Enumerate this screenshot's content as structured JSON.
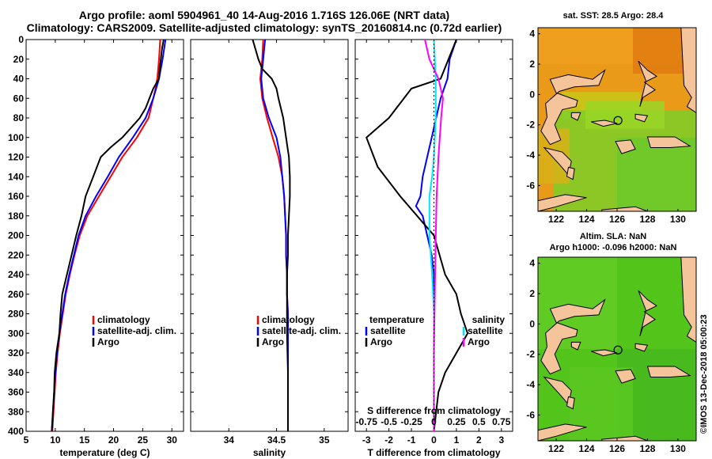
{
  "figure": {
    "title_line1": "Argo profile: aoml 5904961_40 14-Aug-2016 1.716S 126.06E (NRT data)",
    "title_line2": "Climatology: CARS2009. Satellite-adjusted climatology: synTS_20160814.nc (0.72d earlier)",
    "watermark": "©IMOS 13-Dec-2018 05:00:23"
  },
  "colors": {
    "climatology": "#ff0000",
    "satellite": "#0000ff",
    "argo": "#000000",
    "satellite_salinity": "#00e5ff",
    "argo_salinity": "#ff00ff",
    "sst_base": "#e89a18",
    "sla_base": "#52c41a",
    "land": "#f5c49a"
  },
  "chart_data": [
    {
      "id": "temperature",
      "type": "line",
      "xlabel": "temperature (deg C)",
      "ylabel": "",
      "xlim": [
        5,
        32
      ],
      "ylim": [
        400,
        0
      ],
      "xticks": [
        5,
        10,
        15,
        20,
        25,
        30
      ],
      "yticks": [
        0,
        20,
        40,
        60,
        80,
        100,
        120,
        140,
        160,
        180,
        200,
        220,
        240,
        260,
        280,
        300,
        320,
        340,
        360,
        380,
        400
      ],
      "legend_position": "lower-center",
      "series": [
        {
          "name": "climatology",
          "color": "#ff0000",
          "x": [
            28.0,
            27.8,
            27.5,
            27.3,
            27.2,
            26.8,
            26.0,
            24.0,
            21.5,
            19.5,
            17.5,
            15.5,
            14.2,
            13.3,
            12.5,
            11.8,
            11.3,
            10.8,
            10.4,
            10.1,
            9.9,
            9.7,
            9.5
          ],
          "y": [
            0,
            20,
            40,
            45,
            50,
            60,
            80,
            100,
            120,
            140,
            160,
            180,
            200,
            220,
            240,
            260,
            280,
            300,
            320,
            340,
            360,
            380,
            400
          ]
        },
        {
          "name": "satellite-adj. clim.",
          "color": "#0000ff",
          "x": [
            28.9,
            28.4,
            27.8,
            27.3,
            26.8,
            25.5,
            23.3,
            20.9,
            19.0,
            17.0,
            15.2,
            14.0,
            13.2,
            12.4,
            11.7,
            11.2,
            10.7,
            10.3,
            10.0,
            9.8,
            9.6,
            9.4
          ],
          "y": [
            0,
            20,
            40,
            50,
            60,
            80,
            100,
            120,
            140,
            160,
            180,
            200,
            220,
            240,
            260,
            280,
            300,
            320,
            340,
            360,
            380,
            400
          ]
        },
        {
          "name": "Argo",
          "color": "#000000",
          "x": [
            28.6,
            28.3,
            28.1,
            27.9,
            27.8,
            26.8,
            25.5,
            24.5,
            23.0,
            21.5,
            19.5,
            17.8,
            16.5,
            15.2,
            14.5,
            13.6,
            12.8,
            12.0,
            11.2,
            10.9,
            10.7,
            10.2,
            9.9,
            9.8,
            9.6,
            9.5,
            9.4
          ],
          "y": [
            0,
            10,
            20,
            30,
            40,
            50,
            70,
            80,
            90,
            100,
            110,
            120,
            140,
            160,
            180,
            200,
            220,
            240,
            260,
            280,
            300,
            320,
            340,
            360,
            380,
            390,
            400
          ]
        }
      ],
      "legend": [
        "climatology",
        "satellite-adj. clim.",
        "Argo"
      ]
    },
    {
      "id": "salinity",
      "type": "line",
      "xlabel": "salinity",
      "ylabel": "",
      "xlim": [
        33.6,
        35.25
      ],
      "ylim": [
        400,
        0
      ],
      "xticks": [
        34,
        34.5,
        35
      ],
      "legend_position": "lower-center",
      "series": [
        {
          "name": "climatology",
          "color": "#ff0000",
          "x": [
            34.36,
            34.35,
            34.33,
            34.35,
            34.4,
            34.46,
            34.52,
            34.56,
            34.58,
            34.59,
            34.6,
            34.6,
            34.61,
            34.61,
            34.62,
            34.62,
            34.62,
            34.62,
            34.62
          ],
          "y": [
            0,
            20,
            40,
            60,
            80,
            100,
            120,
            140,
            160,
            180,
            200,
            220,
            240,
            260,
            280,
            300,
            340,
            380,
            400
          ]
        },
        {
          "name": "satellite-adj. clim.",
          "color": "#0000ff",
          "x": [
            34.38,
            34.36,
            34.34,
            34.36,
            34.42,
            34.5,
            34.54,
            34.56,
            34.58,
            34.59,
            34.6,
            34.6,
            34.61,
            34.61,
            34.62,
            34.62,
            34.62,
            34.62,
            34.62
          ],
          "y": [
            0,
            20,
            40,
            60,
            80,
            100,
            120,
            140,
            160,
            180,
            200,
            220,
            240,
            260,
            280,
            300,
            340,
            380,
            400
          ]
        },
        {
          "name": "Argo",
          "color": "#000000",
          "x": [
            34.25,
            34.28,
            34.31,
            34.35,
            34.45,
            34.5,
            34.52,
            34.57,
            34.6,
            34.63,
            34.64,
            34.64,
            34.63,
            34.62,
            34.62,
            34.61,
            34.61,
            34.61,
            34.61,
            34.62,
            34.62,
            34.62
          ],
          "y": [
            0,
            10,
            20,
            30,
            40,
            50,
            60,
            80,
            100,
            120,
            140,
            160,
            180,
            200,
            220,
            240,
            260,
            280,
            300,
            340,
            380,
            400
          ]
        }
      ],
      "legend": [
        "climatology",
        "satellite-adj. clim.",
        "Argo"
      ]
    },
    {
      "id": "difference",
      "type": "line",
      "xlabel": "T difference from climatology",
      "xlabel_top": "S difference from climatology",
      "xlim": [
        -3.5,
        3.5
      ],
      "s_xlim": [
        -0.875,
        0.875
      ],
      "ylim": [
        400,
        0
      ],
      "xticks": [
        -3,
        -2,
        -1,
        0,
        1,
        2,
        3
      ],
      "s_xticks": [
        -0.75,
        -0.5,
        -0.25,
        0,
        0.25,
        0.5,
        0.75
      ],
      "legend_left_title": "temperature",
      "legend_right_title": "salinity",
      "series": [
        {
          "name": "T satellite",
          "color": "#0000ff",
          "x": [
            1.0,
            0.7,
            0.6,
            0.3,
            0.1,
            -0.1,
            -0.3,
            -0.5,
            -0.6,
            -0.8,
            -0.5,
            -0.3,
            -0.1,
            0.0,
            0.0,
            0.0,
            0.0,
            0.0,
            0.0,
            0.0,
            0.0
          ],
          "y": [
            0,
            20,
            40,
            60,
            80,
            100,
            120,
            140,
            160,
            170,
            180,
            200,
            220,
            240,
            260,
            280,
            300,
            320,
            340,
            370,
            400
          ]
        },
        {
          "name": "T Argo",
          "color": "#000000",
          "x": [
            1.0,
            0.3,
            -1.0,
            -2.0,
            -3.0,
            -2.5,
            -1.5,
            0.0,
            0.5,
            1.0,
            1.2,
            1.5,
            1.0,
            0.5,
            0.2,
            0.0
          ],
          "y": [
            0,
            40,
            50,
            80,
            100,
            130,
            160,
            200,
            240,
            260,
            280,
            300,
            320,
            340,
            360,
            400
          ]
        },
        {
          "name": "S satellite",
          "color": "#00e5ff",
          "x": [
            0.0,
            0.02,
            0.02,
            0.0,
            -0.02,
            -0.05,
            -0.05,
            -0.02,
            0.0,
            0.0,
            0.0
          ],
          "y": [
            0,
            40,
            80,
            120,
            140,
            160,
            200,
            240,
            280,
            340,
            400
          ]
        },
        {
          "name": "S Argo",
          "color": "#ff00ff",
          "x": [
            -0.1,
            -0.05,
            0.05,
            0.1,
            0.08,
            0.05,
            0.03,
            0.02,
            0.01,
            0.0,
            0.0
          ],
          "y": [
            0,
            20,
            40,
            60,
            80,
            120,
            160,
            200,
            260,
            320,
            400
          ]
        }
      ],
      "legend_left": [
        "satellite",
        "Argo"
      ],
      "legend_right": [
        "satellite",
        "Argo"
      ]
    }
  ],
  "maps": {
    "sst": {
      "title": "sat. SST: 28.5 Argo: 28.4",
      "xticks": [
        122,
        124,
        126,
        128,
        130
      ],
      "yticks": [
        4,
        2,
        0,
        -2,
        -4,
        -6
      ],
      "xlim": [
        120.8,
        131.2
      ],
      "ylim": [
        -7.7,
        4.4
      ],
      "marker_lon": 126.06,
      "marker_lat": -1.716
    },
    "sla": {
      "title1": "Altim. SLA: NaN",
      "title2": "Argo h1000: -0.096 h2000: NaN",
      "xticks": [
        122,
        124,
        126,
        128,
        130
      ],
      "yticks": [
        4,
        2,
        0,
        -2,
        -4,
        -6
      ],
      "xlim": [
        120.8,
        131.2
      ],
      "ylim": [
        -7.7,
        4.4
      ],
      "marker_lon": 126.06,
      "marker_lat": -1.716
    }
  }
}
